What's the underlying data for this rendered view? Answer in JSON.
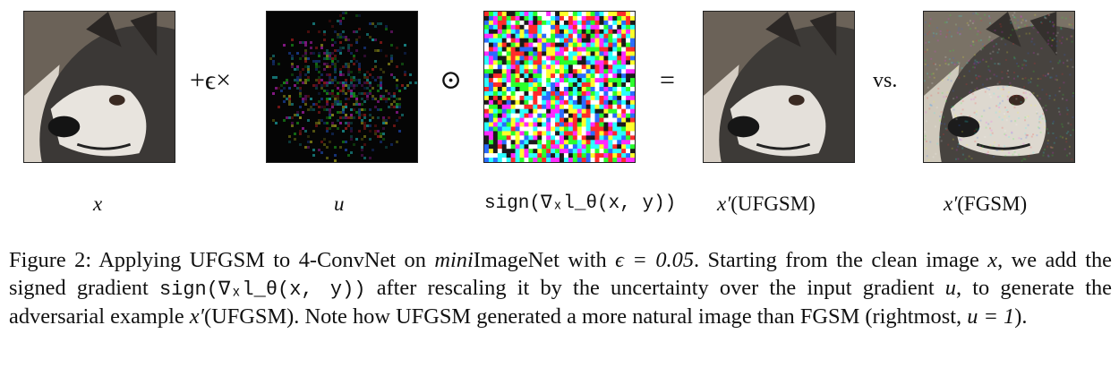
{
  "figure": {
    "operators": {
      "plus_eps_times": "+ϵ×",
      "hadamard": "⊙",
      "equals": "=",
      "versus": "vs."
    },
    "labels": {
      "x": "x",
      "u": "u",
      "sign": "sign(∇ₓl_θ(x, y))",
      "ufgsm_prime": "x′",
      "ufgsm_tag": "(UFGSM)",
      "fgsm_prime": "x′",
      "fgsm_tag": "(FGSM)"
    },
    "images": {
      "clean": "husky-photo",
      "uncertainty": "uncertainty-map",
      "sign": "sign-gradient-noise",
      "ufgsm": "husky-ufgsm",
      "fgsm": "husky-fgsm"
    },
    "colors": {
      "noise_palette": [
        "#ff2a2a",
        "#2aff2a",
        "#2a6bff",
        "#ffff2a",
        "#ff2aff",
        "#2affff",
        "#ffffff",
        "#1a1a1a"
      ]
    }
  },
  "caption": {
    "p1": "Figure 2: Applying UFGSM to 4-ConvNet on ",
    "mini": "mini",
    "p2": "ImageNet with ",
    "eq1": "ϵ = 0.05",
    "p3": ". Starting from the clean image ",
    "x": "x",
    "p4": ", we add the signed gradient ",
    "sign": "sign(∇ₓl_θ(x, y))",
    "p5": " after rescaling it by the uncertainty over the input gradient ",
    "u": "u",
    "p6": ", to generate the adversarial example ",
    "xprime": "x′",
    "p7": "(UFGSM). Note how UFGSM generated a more natural image than FGSM (rightmost, ",
    "eq2": "u = 1",
    "p8": ")."
  }
}
